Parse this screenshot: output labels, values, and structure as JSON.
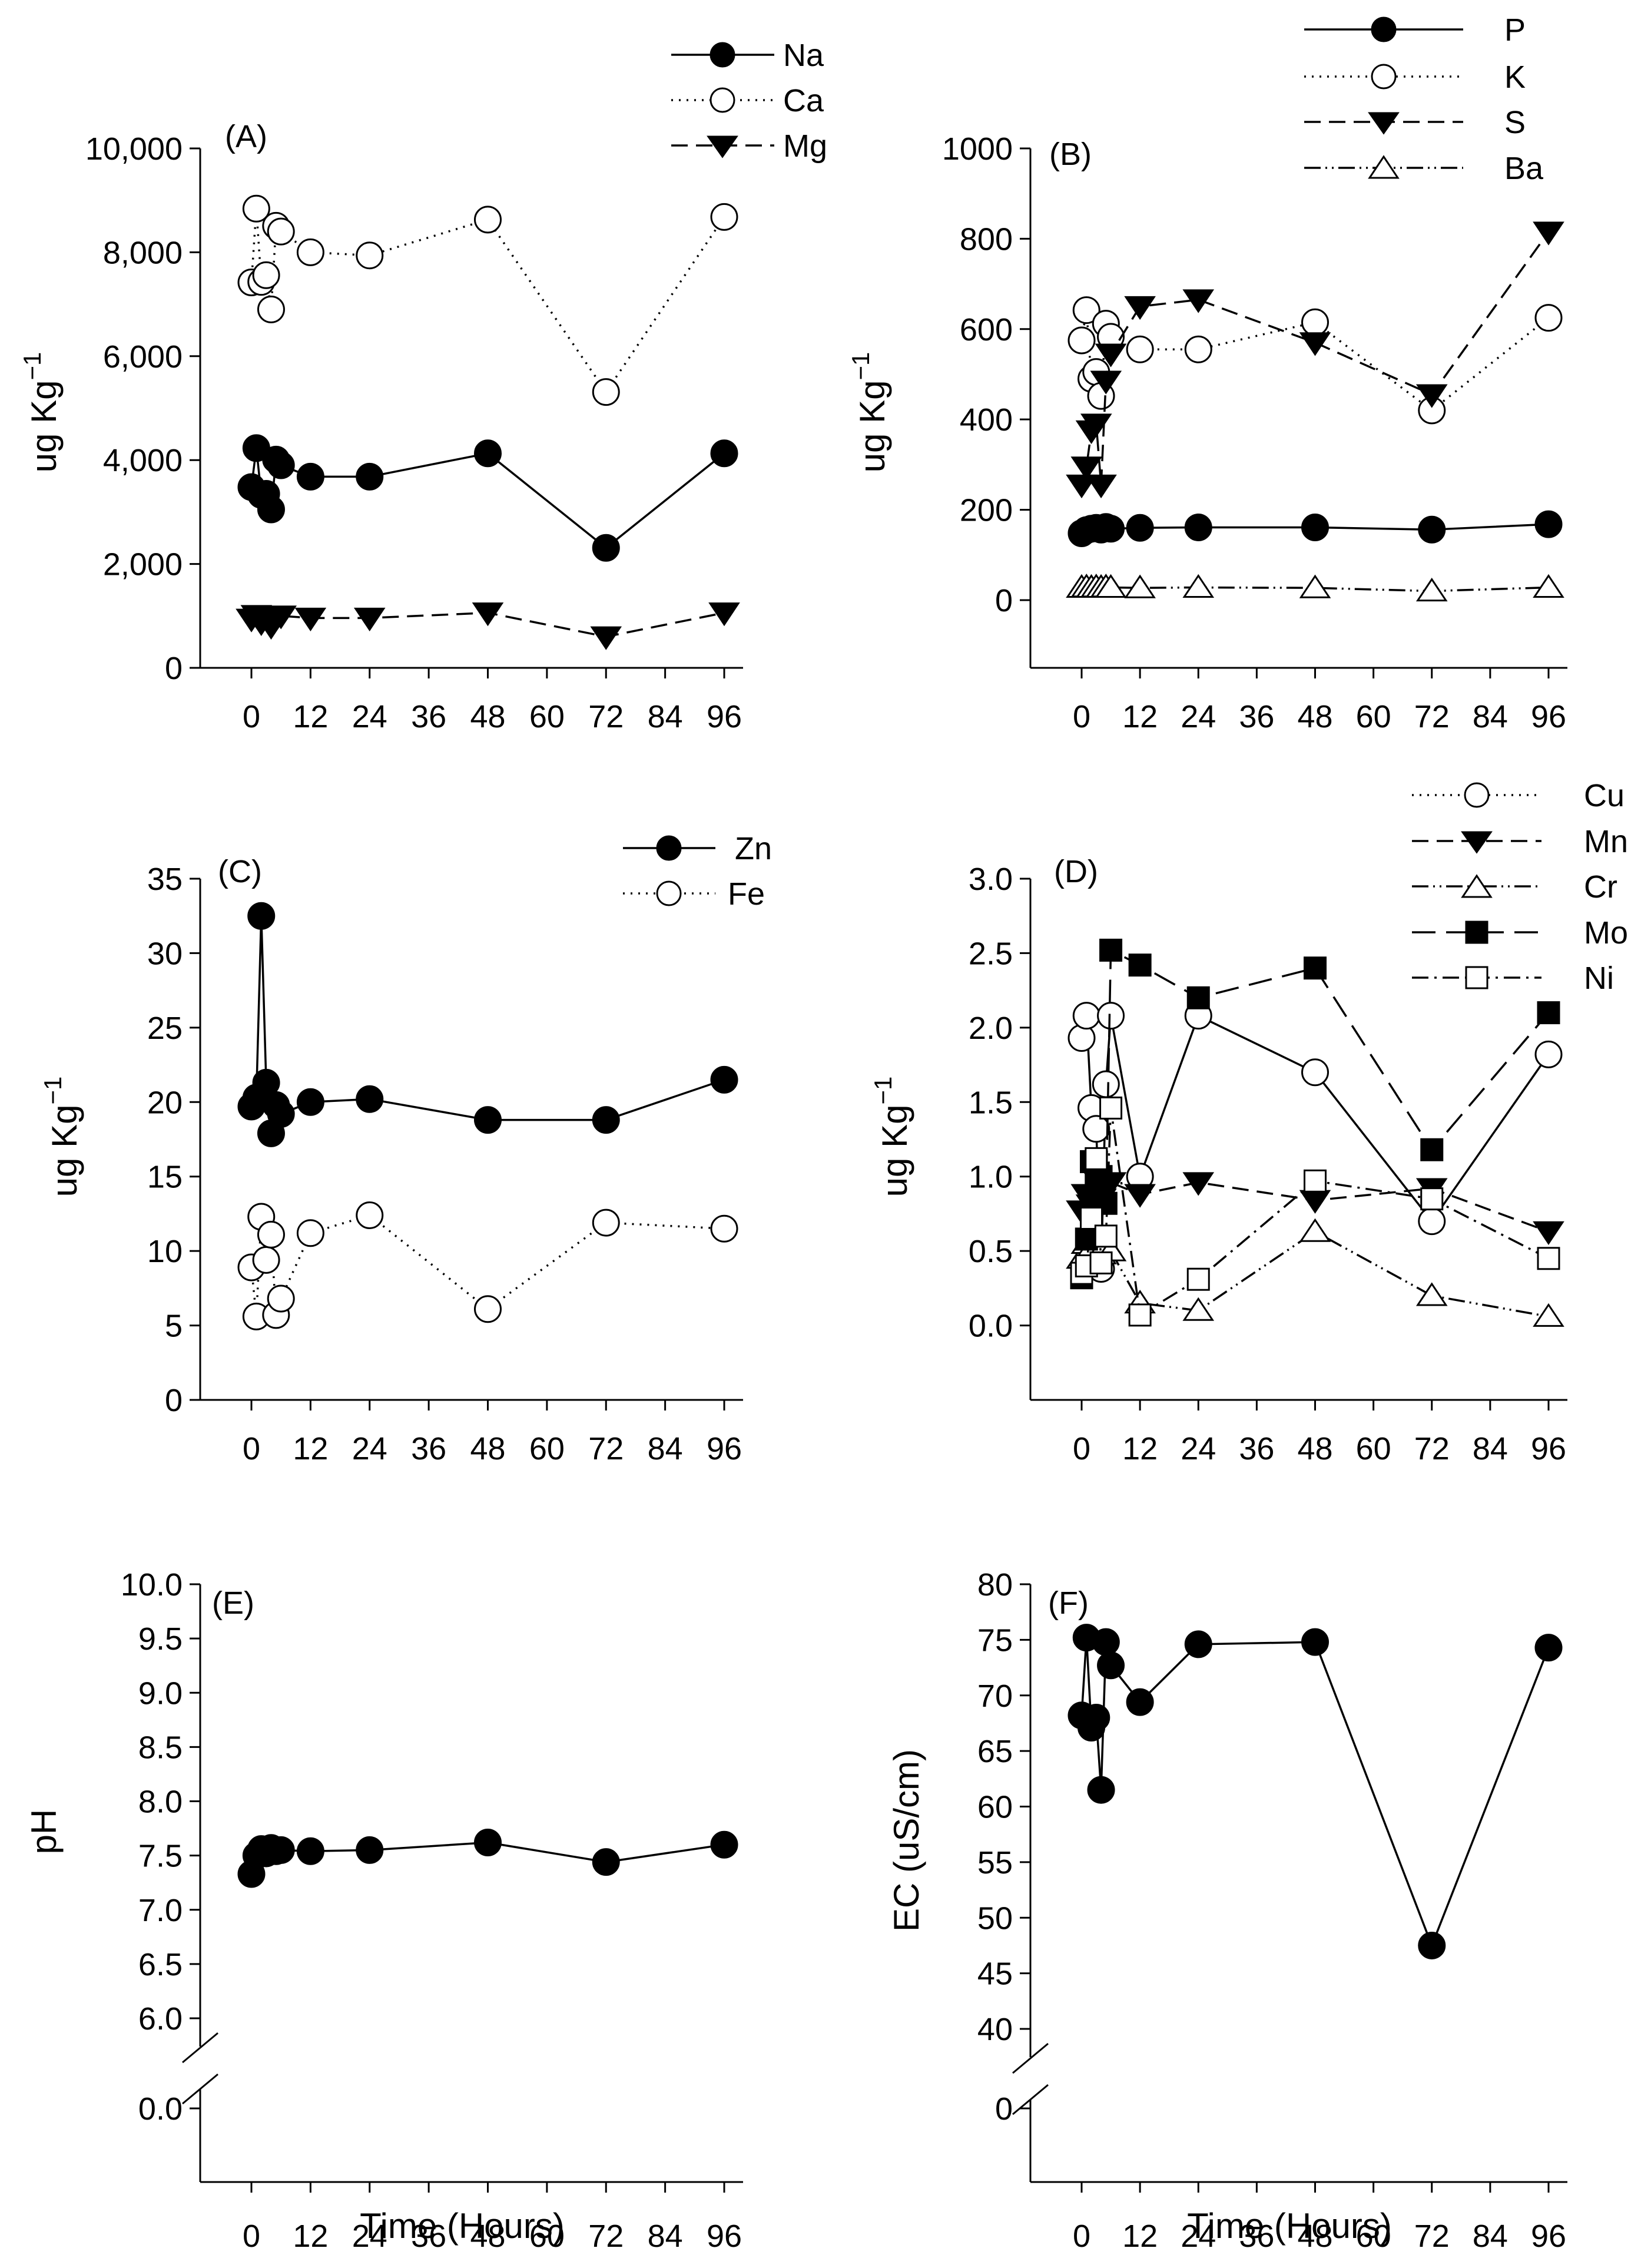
{
  "chart_data": [
    {
      "panel": "(A)",
      "type": "line",
      "ylabel": "ug Kg",
      "ylabel_sup": "−1",
      "xlabel": "",
      "xlim": [
        -6,
        100
      ],
      "ylim": [
        0,
        10000
      ],
      "xticks": [
        0,
        12,
        24,
        36,
        48,
        60,
        72,
        84,
        96
      ],
      "yticks": [
        0,
        2000,
        4000,
        6000,
        8000,
        10000
      ],
      "ytick_labels": [
        "0",
        "2,000",
        "4,000",
        "6,000",
        "8,000",
        "10,000"
      ],
      "series": [
        {
          "name": "Na",
          "marker": "circle-filled",
          "dash": "solid",
          "x": [
            0,
            1,
            2,
            3,
            4,
            5,
            6,
            12,
            24,
            48,
            72,
            96
          ],
          "y": [
            3480,
            4230,
            3330,
            3350,
            3050,
            4010,
            3900,
            3680,
            3680,
            4130,
            2310,
            4130
          ]
        },
        {
          "name": "Ca",
          "marker": "circle-open",
          "dash": "dotted",
          "x": [
            0,
            1,
            2,
            3,
            4,
            5,
            6,
            12,
            24,
            48,
            72,
            96
          ],
          "y": [
            7420,
            8840,
            7430,
            7560,
            6900,
            8510,
            8400,
            8000,
            7940,
            8630,
            5310,
            8680
          ]
        },
        {
          "name": "Mg",
          "marker": "triangle-down-filled",
          "dash": "dashed",
          "x": [
            0,
            1,
            2,
            3,
            4,
            5,
            6,
            12,
            24,
            48,
            72,
            96
          ],
          "y": [
            940,
            1010,
            870,
            960,
            800,
            980,
            1000,
            960,
            960,
            1060,
            600,
            1060
          ]
        }
      ]
    },
    {
      "panel": "(B)",
      "type": "line",
      "ylabel": "ug Kg",
      "ylabel_sup": "−1",
      "xlabel": "",
      "xlim": [
        -6,
        100
      ],
      "ylim": [
        -150,
        1000
      ],
      "xticks": [
        0,
        12,
        24,
        36,
        48,
        60,
        72,
        84,
        96
      ],
      "yticks": [
        0,
        200,
        400,
        600,
        800,
        1000
      ],
      "ytick_labels": [
        "0",
        "200",
        "400",
        "600",
        "800",
        "1000"
      ],
      "series": [
        {
          "name": "P",
          "marker": "circle-filled",
          "dash": "solid",
          "x": [
            0,
            1,
            2,
            3,
            4,
            5,
            6,
            12,
            24,
            48,
            72,
            96
          ],
          "y": [
            148,
            155,
            158,
            160,
            156,
            162,
            158,
            160,
            161,
            161,
            156,
            168
          ]
        },
        {
          "name": "K",
          "marker": "circle-open",
          "dash": "dotted",
          "x": [
            0,
            1,
            2,
            3,
            4,
            5,
            6,
            12,
            24,
            48,
            72,
            96
          ],
          "y": [
            575,
            642,
            490,
            505,
            452,
            612,
            583,
            555,
            555,
            615,
            420,
            625
          ]
        },
        {
          "name": "S",
          "marker": "triangle-down-filled",
          "dash": "dashed",
          "x": [
            0,
            1,
            2,
            3,
            4,
            5,
            6,
            12,
            24,
            48,
            72,
            96
          ],
          "y": [
            255,
            295,
            375,
            390,
            255,
            485,
            545,
            650,
            665,
            570,
            455,
            815
          ]
        },
        {
          "name": "Ba",
          "marker": "triangle-up-open",
          "dash": "dashdotdot",
          "x": [
            0,
            1,
            2,
            3,
            4,
            5,
            6,
            12,
            24,
            48,
            72,
            96
          ],
          "y": [
            28,
            29,
            28,
            29,
            28,
            29,
            28,
            27,
            28,
            27,
            20,
            28
          ]
        }
      ]
    },
    {
      "panel": "(C)",
      "type": "line",
      "ylabel": "ug Kg",
      "ylabel_sup": "−1",
      "xlabel": "",
      "xlim": [
        -6,
        100
      ],
      "ylim": [
        0,
        35
      ],
      "xticks": [
        0,
        12,
        24,
        36,
        48,
        60,
        72,
        84,
        96
      ],
      "yticks": [
        0,
        5,
        10,
        15,
        20,
        25,
        30,
        35
      ],
      "ytick_labels": [
        "0",
        "5",
        "10",
        "15",
        "20",
        "25",
        "30",
        "35"
      ],
      "series": [
        {
          "name": "Zn",
          "marker": "circle-filled",
          "dash": "solid",
          "x": [
            0,
            1,
            2,
            3,
            4,
            5,
            6,
            12,
            24,
            48,
            72,
            96
          ],
          "y": [
            19.7,
            20.3,
            32.5,
            21.3,
            17.9,
            19.8,
            19.2,
            20.0,
            20.2,
            18.8,
            18.8,
            21.5
          ]
        },
        {
          "name": "Fe",
          "marker": "circle-open",
          "dash": "dotted",
          "x": [
            0,
            1,
            2,
            3,
            4,
            5,
            6,
            12,
            24,
            48,
            72,
            96
          ],
          "y": [
            8.9,
            5.6,
            12.3,
            9.4,
            11.1,
            5.7,
            6.8,
            11.2,
            12.4,
            6.1,
            11.9,
            11.5
          ]
        }
      ]
    },
    {
      "panel": "(D)",
      "type": "line",
      "ylabel": "ug Kg",
      "ylabel_sup": "−1",
      "xlabel": "",
      "xlim": [
        -6,
        100
      ],
      "ylim": [
        -0.5,
        3.0
      ],
      "xticks": [
        0,
        12,
        24,
        36,
        48,
        60,
        72,
        84,
        96
      ],
      "yticks": [
        0.0,
        0.5,
        1.0,
        1.5,
        2.0,
        2.5,
        3.0
      ],
      "ytick_labels": [
        "0.0",
        "0.5",
        "1.0",
        "1.5",
        "2.0",
        "2.5",
        "3.0"
      ],
      "series": [
        {
          "name": "Cu",
          "marker": "circle-open",
          "dash": "solid",
          "x": [
            0,
            1,
            2,
            3,
            4,
            5,
            6,
            12,
            24,
            48,
            72,
            96
          ],
          "y": [
            1.93,
            2.08,
            1.46,
            1.32,
            0.38,
            1.62,
            2.08,
            1.0,
            2.08,
            1.7,
            0.7,
            1.82
          ]
        },
        {
          "name": "Mn",
          "marker": "triangle-down-filled",
          "dash": "dashed",
          "x": [
            0,
            1,
            2,
            3,
            4,
            5,
            6,
            12,
            24,
            48,
            72,
            96
          ],
          "y": [
            0.77,
            0.88,
            0.81,
            0.99,
            0.85,
            0.94,
            0.96,
            0.88,
            0.96,
            0.84,
            0.92,
            0.63
          ]
        },
        {
          "name": "Cr",
          "marker": "triangle-up-open",
          "dash": "dashdotdot",
          "x": [
            0,
            1,
            2,
            3,
            4,
            5,
            6,
            12,
            24,
            48,
            72,
            96
          ],
          "y": [
            0.45,
            0.55,
            0.52,
            0.58,
            0.48,
            0.55,
            0.5,
            0.15,
            0.1,
            0.63,
            0.2,
            0.06
          ]
        },
        {
          "name": "Mo",
          "marker": "square-filled",
          "dash": "longdash",
          "x": [
            0,
            1,
            2,
            3,
            4,
            5,
            6,
            12,
            24,
            48,
            72,
            96
          ],
          "y": [
            0.32,
            0.58,
            1.1,
            0.95,
            1.0,
            0.82,
            2.52,
            2.42,
            2.2,
            2.4,
            1.18,
            2.1
          ]
        },
        {
          "name": "Ni",
          "marker": "square-open",
          "dash": "dashdot",
          "x": [
            0,
            1,
            2,
            3,
            4,
            5,
            6,
            12,
            24,
            48,
            72,
            96
          ],
          "y": [
            0.35,
            0.4,
            0.72,
            1.12,
            0.42,
            0.6,
            1.46,
            0.07,
            0.31,
            0.97,
            0.85,
            0.45
          ]
        }
      ]
    },
    {
      "panel": "(E)",
      "type": "line",
      "ylabel": "pH",
      "xlabel": "Time (Hours)",
      "xlim": [
        -6,
        100
      ],
      "ylim": [
        6.0,
        10.0
      ],
      "axis_break": true,
      "xticks": [
        0,
        12,
        24,
        36,
        48,
        60,
        72,
        84,
        96
      ],
      "yticks": [
        6.0,
        6.5,
        7.0,
        7.5,
        8.0,
        8.5,
        9.0,
        9.5,
        10.0
      ],
      "ytick_labels": [
        "6.0",
        "6.5",
        "7.0",
        "7.5",
        "8.0",
        "8.5",
        "9.0",
        "9.5",
        "10.0"
      ],
      "break_tick_label": "0.0",
      "series": [
        {
          "name": "pH",
          "marker": "circle-filled",
          "dash": "solid",
          "x": [
            0,
            1,
            2,
            3,
            4,
            5,
            6,
            12,
            24,
            48,
            72,
            96
          ],
          "y": [
            7.33,
            7.5,
            7.56,
            7.52,
            7.57,
            7.54,
            7.55,
            7.54,
            7.55,
            7.62,
            7.44,
            7.6
          ]
        }
      ]
    },
    {
      "panel": "(F)",
      "type": "line",
      "ylabel": "EC (uS/cm)",
      "xlabel": "Time (Hours)",
      "xlim": [
        -6,
        100
      ],
      "ylim": [
        40,
        80
      ],
      "axis_break": true,
      "xticks": [
        0,
        12,
        24,
        36,
        48,
        60,
        72,
        84,
        96
      ],
      "yticks": [
        40,
        45,
        50,
        55,
        60,
        65,
        70,
        75,
        80
      ],
      "ytick_labels": [
        "40",
        "45",
        "50",
        "55",
        "60",
        "65",
        "70",
        "75",
        "80"
      ],
      "break_tick_label": "0",
      "series": [
        {
          "name": "EC",
          "marker": "circle-filled",
          "dash": "solid",
          "x": [
            0,
            1,
            2,
            3,
            4,
            5,
            6,
            12,
            24,
            48,
            72,
            96
          ],
          "y": [
            68.2,
            75.2,
            67.1,
            68.0,
            61.5,
            74.8,
            72.7,
            69.4,
            74.6,
            74.8,
            47.5,
            74.3
          ]
        }
      ]
    }
  ]
}
